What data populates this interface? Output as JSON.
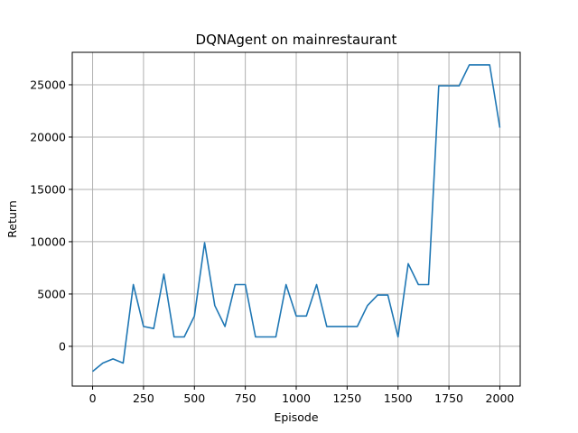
{
  "chart_data": {
    "type": "line",
    "title": "DQNAgent on mainrestaurant",
    "xlabel": "Episode",
    "ylabel": "Return",
    "xlim": [
      -100,
      2100
    ],
    "ylim": [
      -3800,
      28100
    ],
    "xticks": [
      0,
      250,
      500,
      750,
      1000,
      1250,
      1500,
      1750,
      2000
    ],
    "yticks": [
      0,
      5000,
      10000,
      15000,
      20000,
      25000
    ],
    "grid": true,
    "series": [
      {
        "color": "#1f77b4",
        "x": [
          0,
          50,
          100,
          150,
          200,
          250,
          300,
          350,
          400,
          450,
          500,
          550,
          600,
          650,
          700,
          750,
          800,
          850,
          900,
          950,
          1000,
          1050,
          1100,
          1150,
          1200,
          1250,
          1300,
          1350,
          1400,
          1450,
          1500,
          1550,
          1600,
          1650,
          1700,
          1750,
          1800,
          1850,
          1900,
          1950,
          2000
        ],
        "y": [
          -2400,
          -1600,
          -1200,
          -1600,
          5900,
          1900,
          1700,
          6900,
          900,
          900,
          2900,
          9900,
          3900,
          1900,
          5900,
          5900,
          900,
          900,
          900,
          5900,
          2900,
          2900,
          5900,
          1900,
          1900,
          1900,
          1900,
          3900,
          4900,
          4900,
          900,
          7900,
          5900,
          5900,
          24900,
          24900,
          24900,
          26900,
          26900,
          26900,
          20900
        ]
      }
    ]
  }
}
